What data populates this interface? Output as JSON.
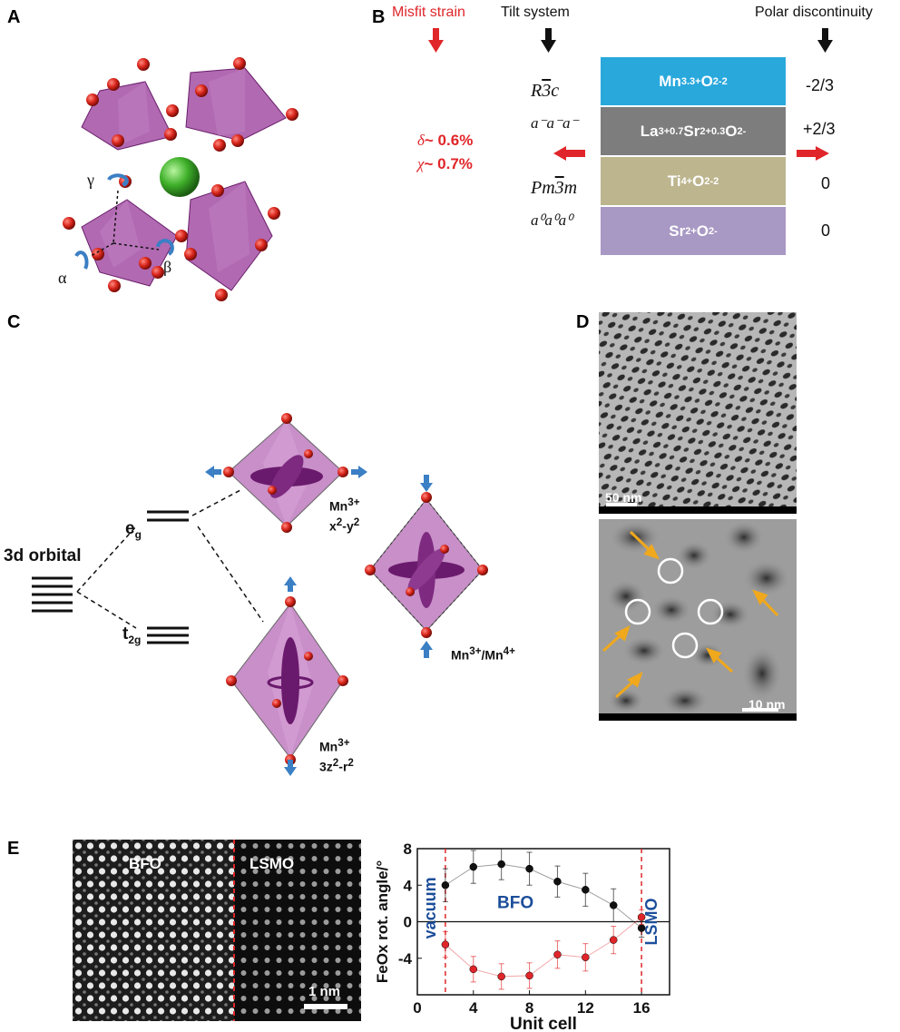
{
  "panels": {
    "a": "A",
    "b": "B",
    "c": "C",
    "d": "D",
    "e": "E"
  },
  "panel_a": {
    "angles": {
      "gamma": "γ",
      "alpha": "α",
      "beta": "β"
    }
  },
  "panel_b": {
    "headers": {
      "misfit": "Misfit strain",
      "tilt": "Tilt system",
      "polar": "Polar discontinuity"
    },
    "strain": {
      "delta_sym": "δ",
      "delta_val": "~ 0.6%",
      "chi_sym": "χ",
      "chi_val": "~ 0.7%"
    },
    "tilt_labels": {
      "r3c": "R3c",
      "t1": "a⁻a⁻a⁻",
      "pm3m": "Pm3m",
      "t2": "a⁰a⁰a⁰"
    },
    "layers": [
      {
        "base": "Mn",
        "text": "Mn3.3+O2-2",
        "charge": "-2/3",
        "color": "#29a8dc"
      },
      {
        "text": "La3+0.7Sr2+0.3O2-",
        "charge": "+2/3",
        "color": "#7d7d7d"
      },
      {
        "text": "Ti4+O2-2",
        "charge": "0",
        "color": "#bcb58e"
      },
      {
        "text": "Sr2+O2-",
        "charge": "0",
        "color": "#a898c4"
      }
    ],
    "arrow_colors": {
      "red": "#e0262a",
      "black": "#111111"
    }
  },
  "panel_c": {
    "orbital_label": "3d orbital",
    "eg": "e",
    "eg_sub": "g",
    "t2g": "t",
    "t2g_sub": "2g",
    "mn1": {
      "ion": "Mn3+",
      "orbital": "x2-y2"
    },
    "mn2": {
      "ion": "Mn3+",
      "orbital": "3z2-r2"
    },
    "mn3": {
      "label": "Mn3+/Mn4+"
    }
  },
  "panel_d": {
    "scale_top": "50 nm",
    "scale_bottom": "10 nm"
  },
  "panel_e": {
    "image_labels": {
      "bfo": "BFO",
      "lsmo": "LSMO",
      "scale": "1 nm"
    },
    "chart_labels": {
      "vacuum": "vacuum",
      "bfo": "BFO",
      "lsmo": "LSMO"
    }
  },
  "chart_data": {
    "type": "scatter",
    "xlabel": "Unit cell",
    "ylabel": "FeOx rot. angle/°",
    "xlim": [
      0,
      18
    ],
    "ylim": [
      -8,
      8
    ],
    "xticks": [
      0,
      4,
      8,
      12,
      16
    ],
    "yticks": [
      -4,
      0,
      4,
      8
    ],
    "vlines": [
      2,
      16
    ],
    "series": [
      {
        "color": "#111111",
        "x": [
          2,
          4,
          6,
          8,
          10,
          12,
          14,
          16
        ],
        "y": [
          4.0,
          6.0,
          6.3,
          5.8,
          4.4,
          3.5,
          1.8,
          -0.7
        ],
        "err": [
          1.8,
          1.8,
          1.7,
          1.8,
          1.7,
          1.8,
          1.8,
          1.0
        ]
      },
      {
        "color": "#e0262a",
        "x": [
          2,
          4,
          6,
          8,
          10,
          12,
          14,
          16
        ],
        "y": [
          -2.5,
          -5.2,
          -6.0,
          -5.9,
          -3.6,
          -3.9,
          -2.0,
          0.5
        ],
        "err": [
          1.4,
          1.4,
          1.4,
          1.4,
          1.5,
          1.5,
          1.5,
          0.8
        ]
      }
    ]
  }
}
